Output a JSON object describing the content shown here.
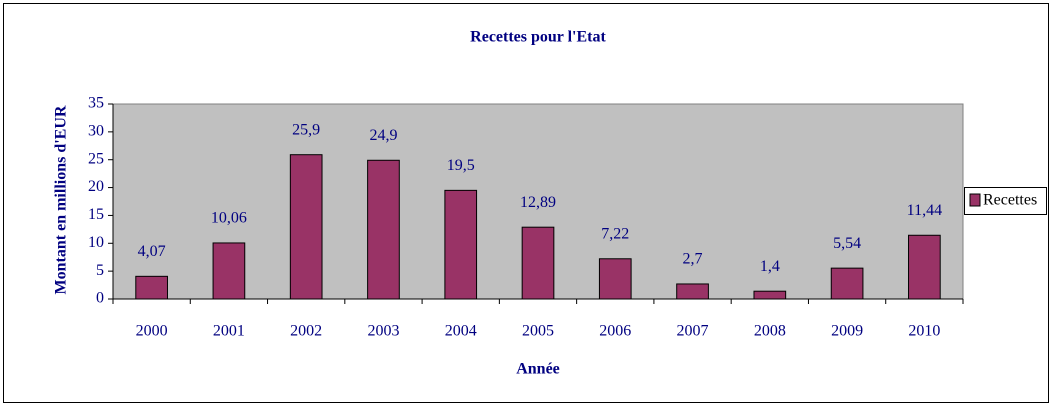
{
  "chart_data": {
    "type": "bar",
    "title": "Recettes pour l'Etat",
    "x_label": "Année",
    "y_label": "Montant en millions d'EUR",
    "categories": [
      "2000",
      "2001",
      "2002",
      "2003",
      "2004",
      "2005",
      "2006",
      "2007",
      "2008",
      "2009",
      "2010"
    ],
    "series": [
      {
        "name": "Recettes",
        "color": "#993366",
        "values": [
          4.07,
          10.06,
          25.9,
          24.9,
          19.5,
          12.89,
          7.22,
          2.7,
          1.4,
          5.54,
          11.44
        ],
        "value_labels": [
          "4,07",
          "10,06",
          "25,9",
          "24,9",
          "19,5",
          "12,89",
          "7,22",
          "2,7",
          "1,4",
          "5,54",
          "11,44"
        ]
      }
    ],
    "ylim": [
      0,
      35
    ],
    "yticks": [
      0,
      5,
      10,
      15,
      20,
      25,
      30,
      35
    ],
    "legend": "right",
    "plot_background": "#c0c0c0"
  }
}
